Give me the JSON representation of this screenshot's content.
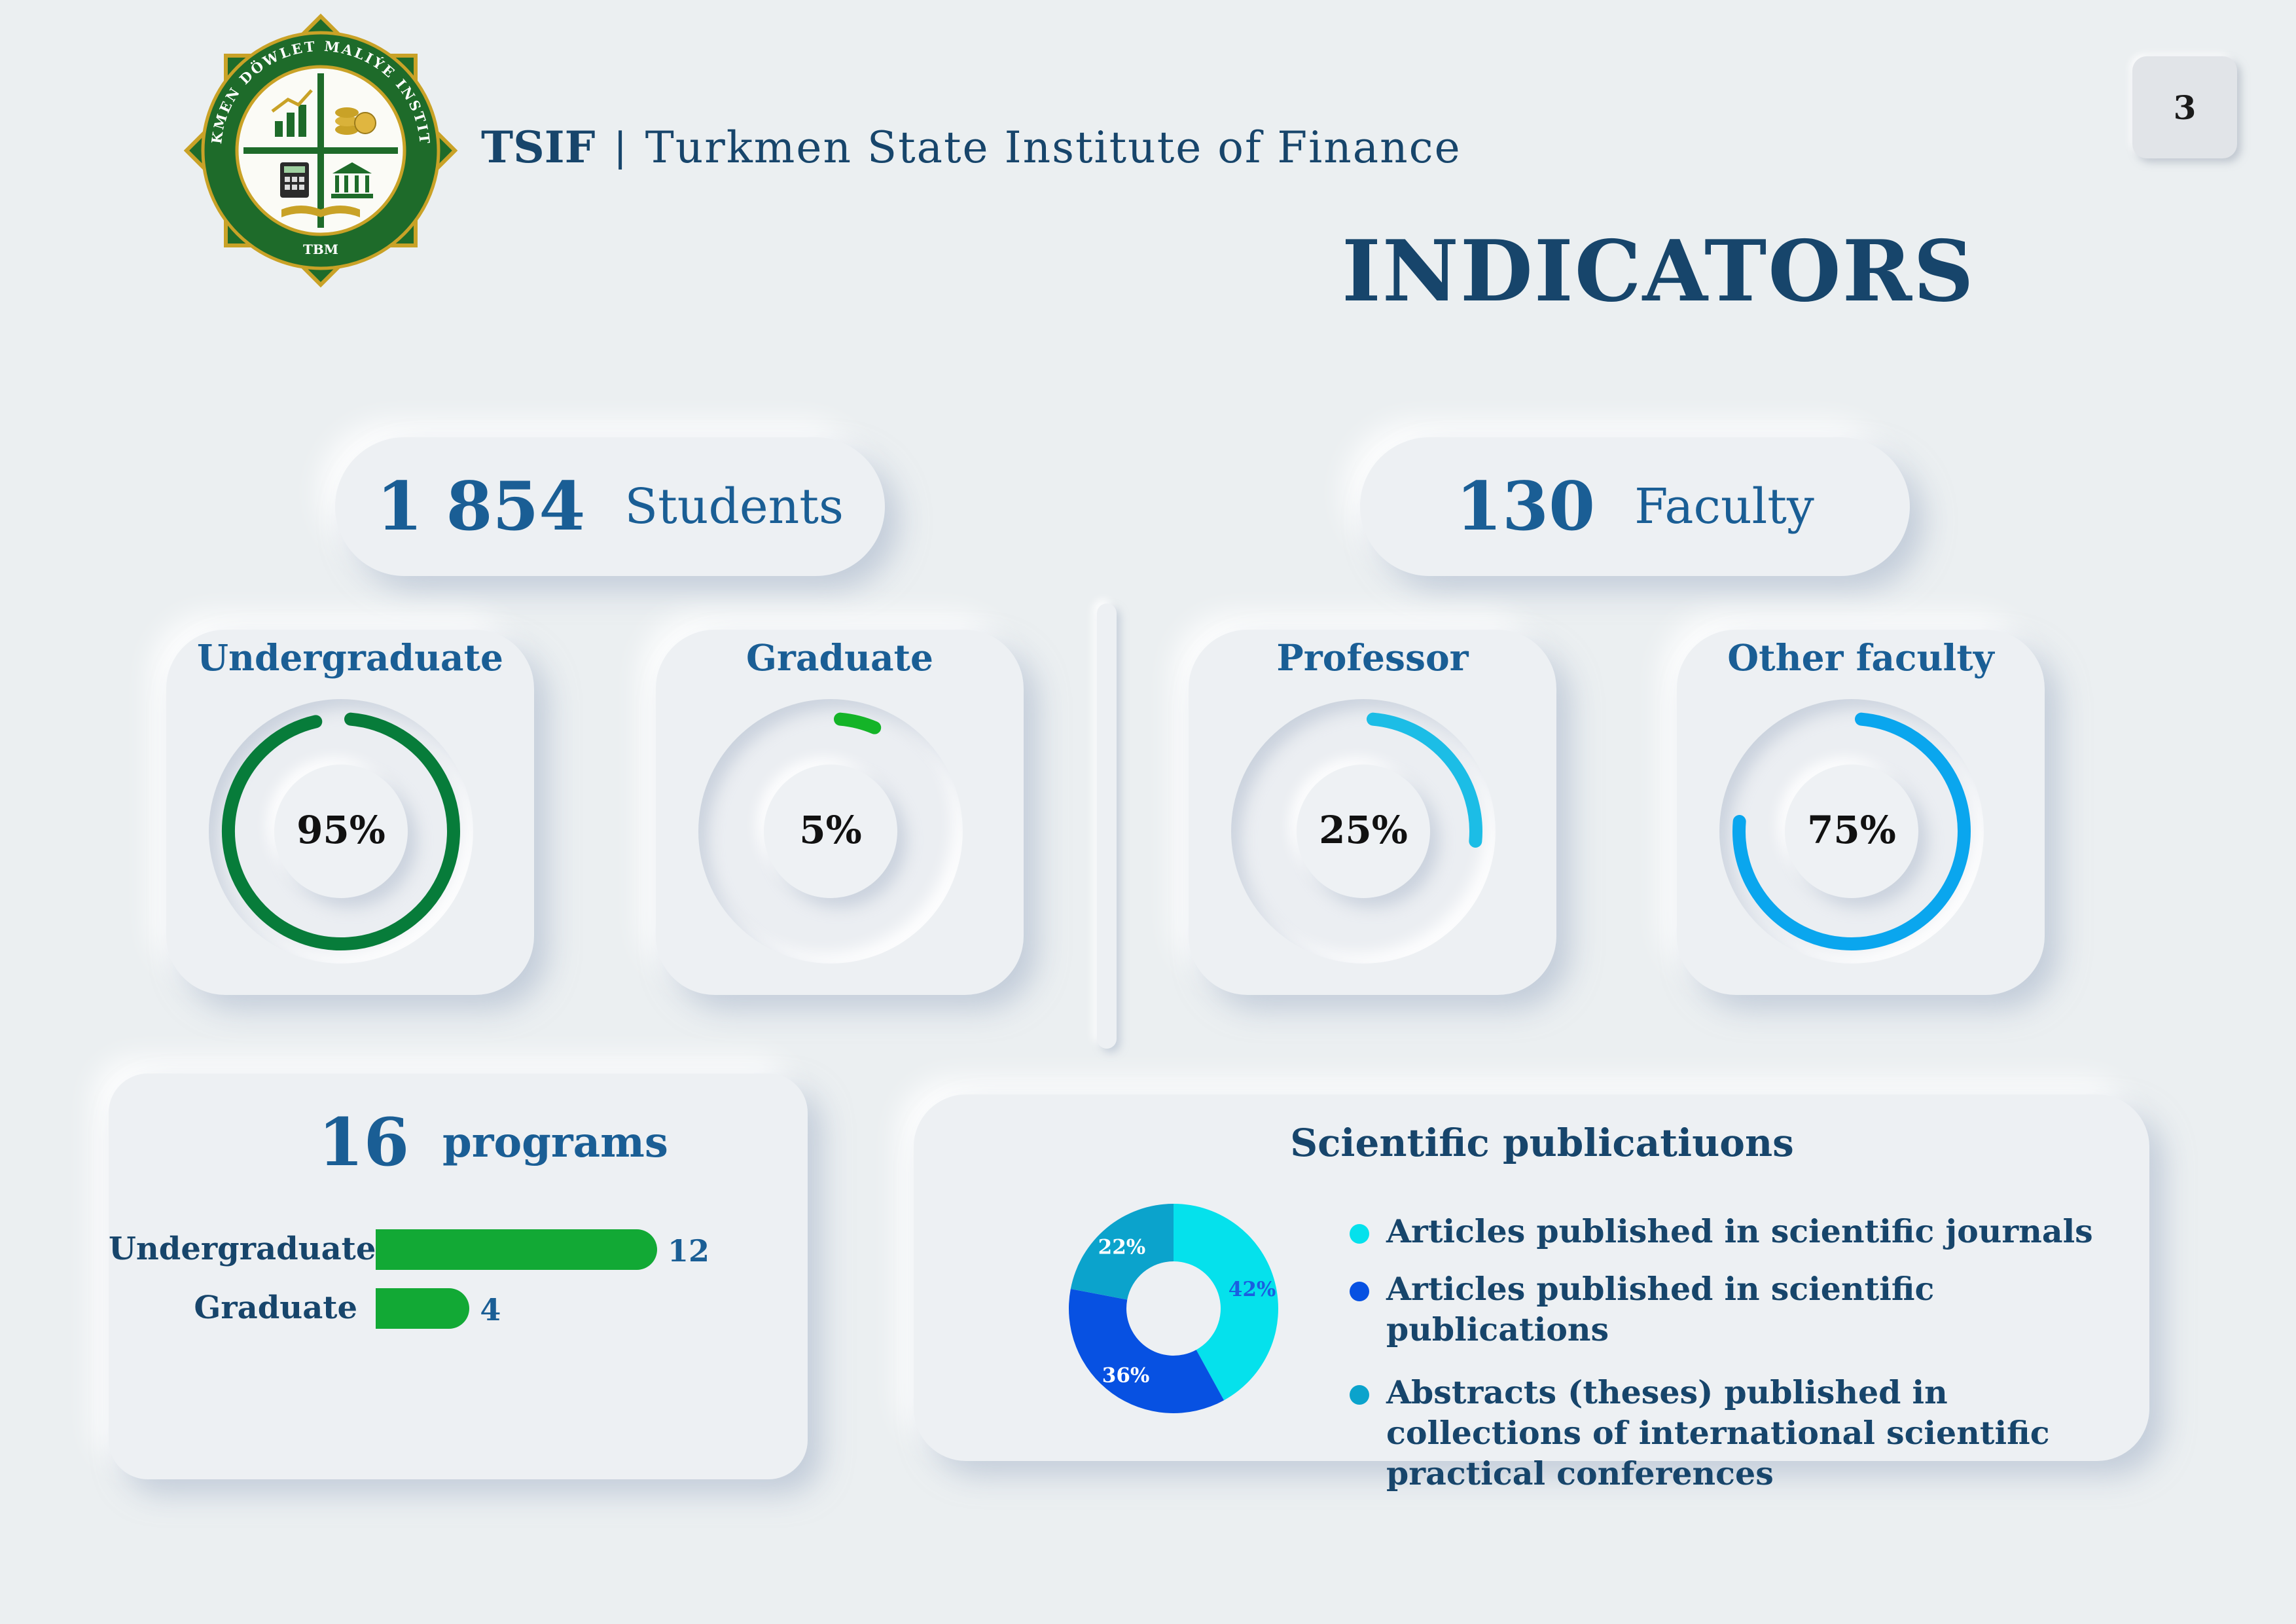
{
  "header": {
    "logo": {
      "seal_text": "TÜRKMEN DÖWLET MALIÝE INSTITUTY",
      "seal_abbr": "TBM",
      "icon": "institute-seal-icon",
      "colors": {
        "green": "#1e6b2a",
        "gold": "#c9a227"
      }
    },
    "brand_abbr": "TSIF",
    "brand_sep": "|",
    "brand_full": "Turkmen State Institute of Finance",
    "page_number": "3",
    "title": "INDICATORS"
  },
  "students": {
    "count": "1 854",
    "label": "Students",
    "cards": [
      {
        "title": "Undergraduate",
        "percent_text": "95%",
        "value": 95,
        "color": "#077c3a"
      },
      {
        "title": "Graduate",
        "percent_text": "5%",
        "value": 5,
        "color": "#14b428"
      }
    ]
  },
  "faculty": {
    "count": "130",
    "label": "Faculty",
    "cards": [
      {
        "title": "Professor",
        "percent_text": "25%",
        "value": 25,
        "color": "#1cbde6"
      },
      {
        "title": "Other faculty",
        "percent_text": "75%",
        "value": 75,
        "color": "#0aa6ee"
      }
    ]
  },
  "programs": {
    "count": "16",
    "label": "programs",
    "bars": [
      {
        "label": "Undergraduate",
        "value": 12,
        "value_text": "12"
      },
      {
        "label": "Graduate",
        "value": 4,
        "value_text": "4"
      }
    ],
    "bar_color": "#12a935"
  },
  "publications": {
    "title": "Scientific publicatiuons",
    "slices": [
      {
        "label": "Articles published in scientific journals",
        "value": 42,
        "pct_text": "42%",
        "color": "#05e1ec",
        "label_color": "#1a5fe0"
      },
      {
        "label": "Articles published in scientific publications",
        "value": 36,
        "pct_text": "36%",
        "color": "#0751e2",
        "label_color": "#ffffff"
      },
      {
        "label": "Abstracts (theses) published in collections of international scientific practical conferences",
        "value": 22,
        "pct_text": "22%",
        "color": "#0ba3cc",
        "label_color": "#ffffff"
      }
    ]
  }
}
